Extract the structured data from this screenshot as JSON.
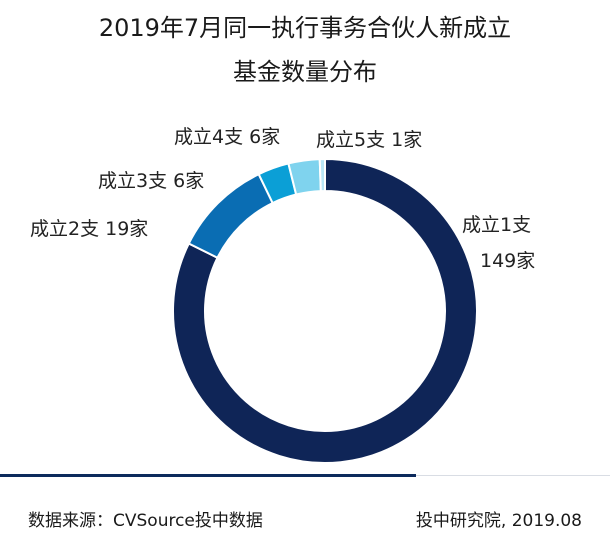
{
  "title_line1": "2019年7月同一执行事务合伙人新成立",
  "title_line2": "基金数量分布",
  "chart_data": {
    "type": "pie",
    "variant": "donut",
    "slices": [
      {
        "label": "成立1支",
        "value_label": "149家",
        "value": 149,
        "color": "#0f2557"
      },
      {
        "label": "成立2支",
        "value_label": "19家",
        "value": 19,
        "color": "#0a6db3"
      },
      {
        "label": "成立3支",
        "value_label": "6家",
        "value": 6,
        "color": "#0b9fd6"
      },
      {
        "label": "成立4支",
        "value_label": "6家",
        "value": 6,
        "color": "#7fd3ee"
      },
      {
        "label": "成立5支",
        "value_label": "1家",
        "value": 1,
        "color": "#b9e7f6"
      }
    ]
  },
  "footer": {
    "source": "数据来源：CVSource投中数据",
    "credit": "投中研究院, 2019.08"
  }
}
